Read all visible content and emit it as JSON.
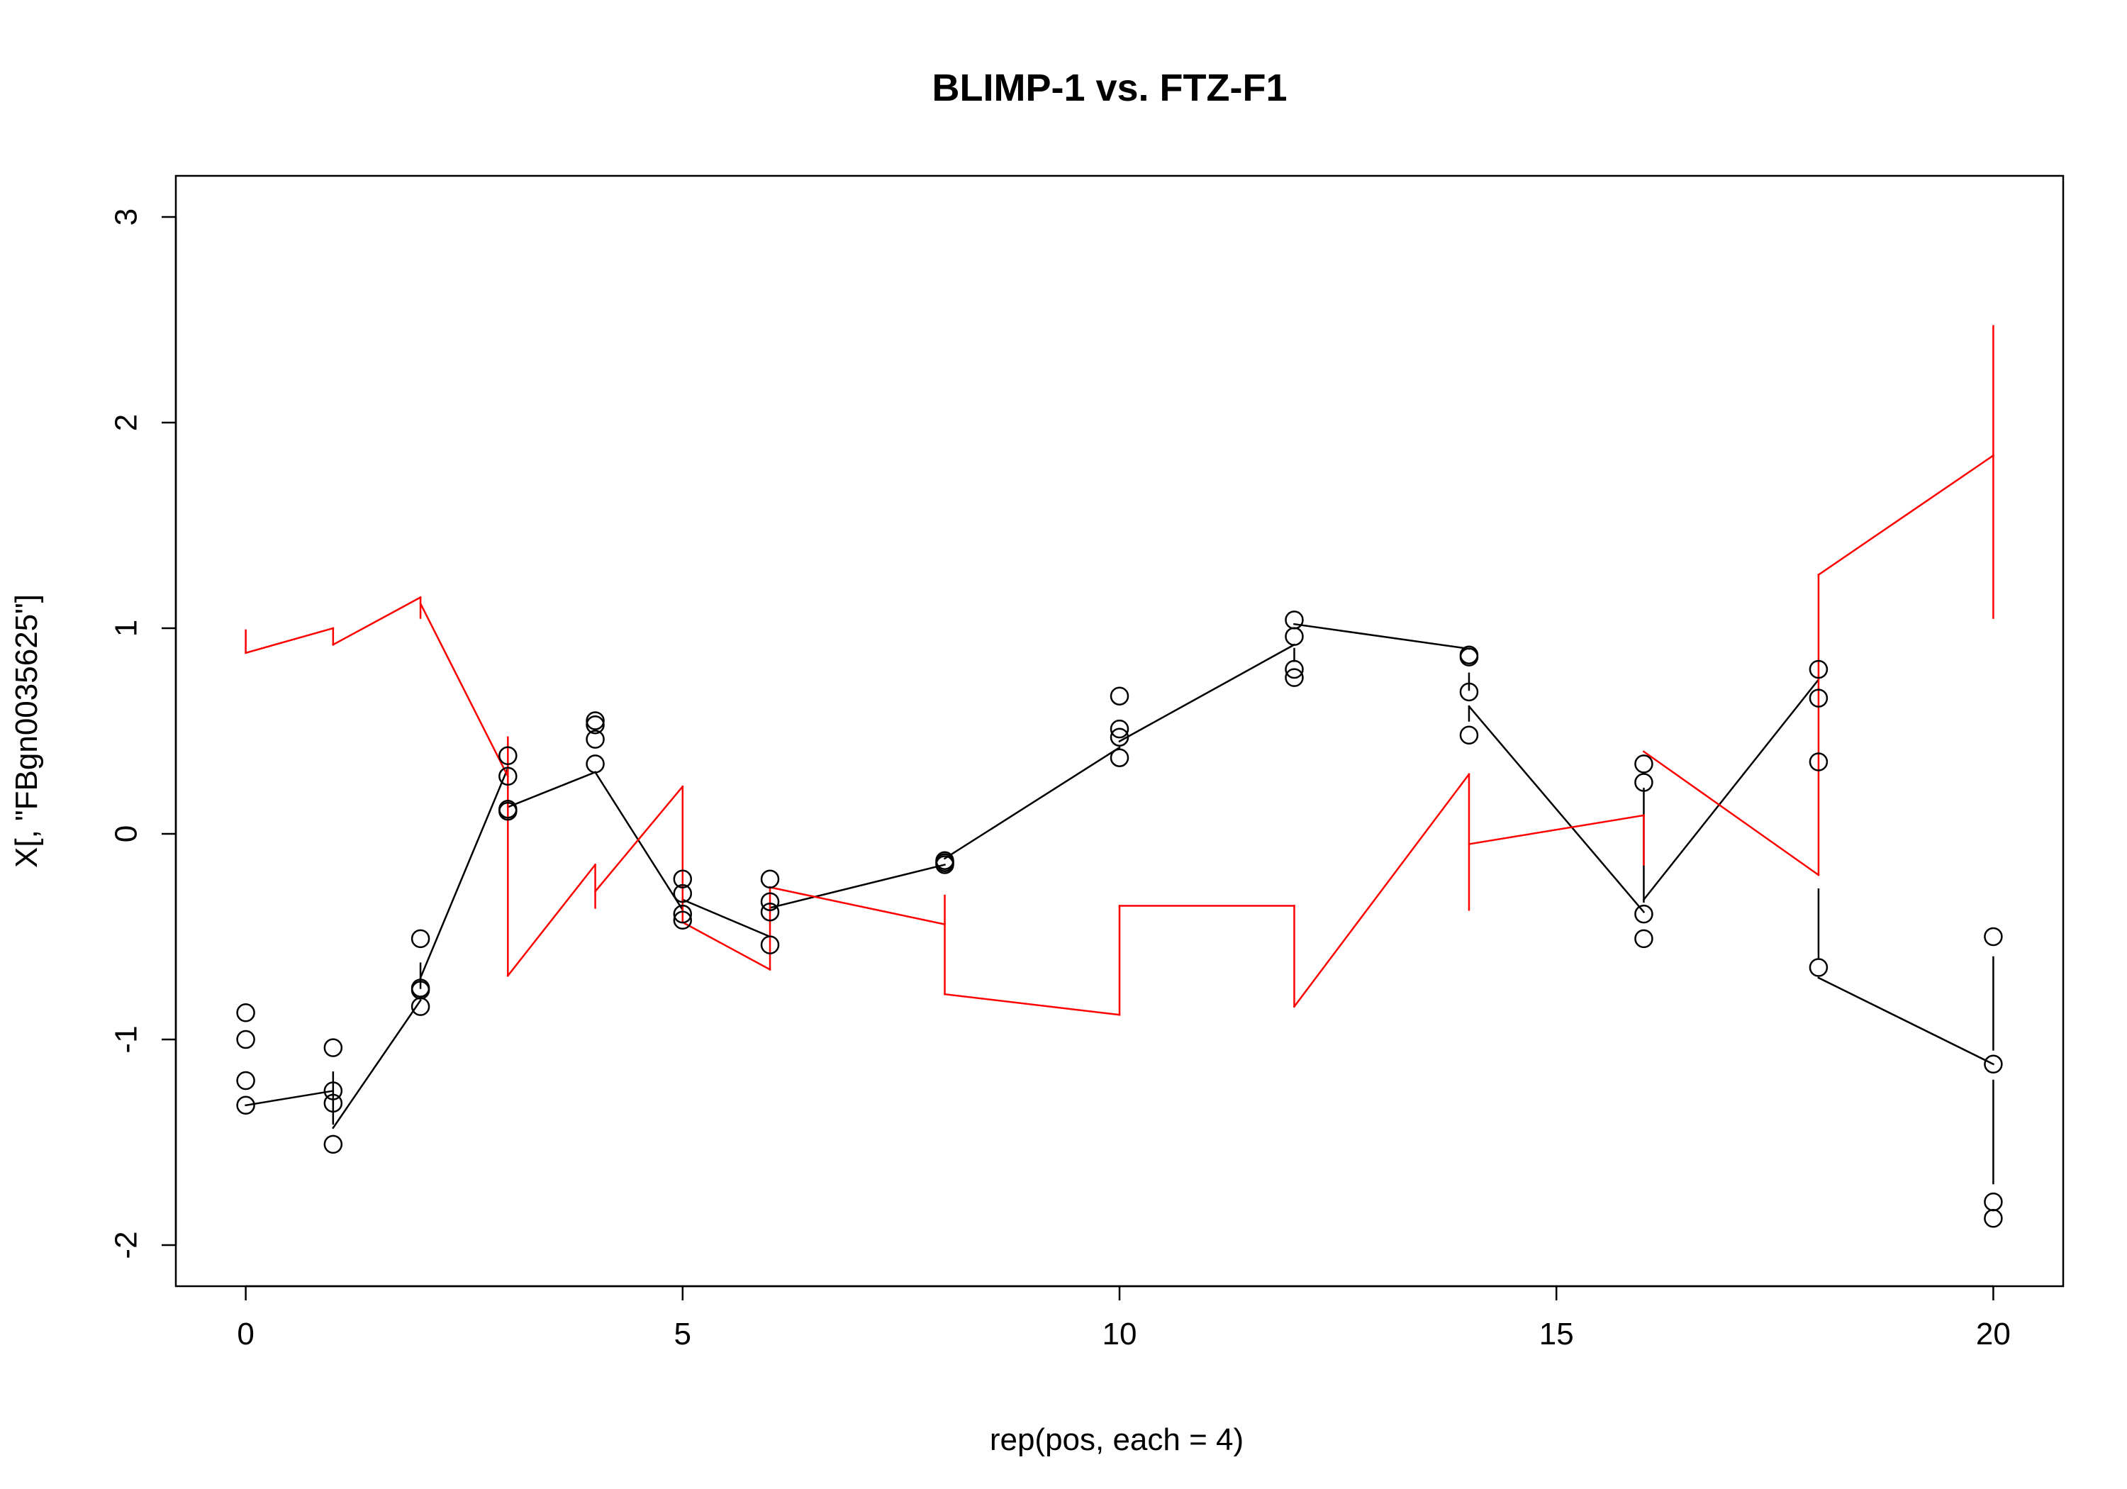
{
  "chart_data": {
    "type": "scatter",
    "title": "BLIMP-1 vs. FTZ-F1",
    "xlabel": "rep(pos, each = 4)",
    "ylabel": "X[, \"FBgn0035625\"]",
    "xlim": [
      -0.8,
      20.8
    ],
    "ylim": [
      -2.2,
      3.2
    ],
    "xticks": [
      0,
      5,
      10,
      15,
      20
    ],
    "yticks": [
      -2,
      -1,
      0,
      1,
      2,
      3
    ],
    "grid": false,
    "colors": {
      "points": "#000000",
      "mean_line": "#000000",
      "ref_line": "#ff0000"
    },
    "points": [
      {
        "x": 0,
        "ys": [
          -0.87,
          -1.0,
          -1.2,
          -1.32
        ]
      },
      {
        "x": 1,
        "ys": [
          -1.04,
          -1.25,
          -1.31,
          -1.51
        ]
      },
      {
        "x": 2,
        "ys": [
          -0.51,
          -0.75,
          -0.76,
          -0.84
        ]
      },
      {
        "x": 3,
        "ys": [
          0.38,
          0.28,
          0.12,
          0.11
        ]
      },
      {
        "x": 4,
        "ys": [
          0.55,
          0.53,
          0.46,
          0.34
        ]
      },
      {
        "x": 5,
        "ys": [
          -0.22,
          -0.29,
          -0.39,
          -0.42
        ]
      },
      {
        "x": 6,
        "ys": [
          -0.22,
          -0.33,
          -0.38,
          -0.54
        ]
      },
      {
        "x": 8,
        "ys": [
          -0.13,
          -0.14,
          -0.14,
          -0.15
        ]
      },
      {
        "x": 10,
        "ys": [
          0.67,
          0.51,
          0.47,
          0.37
        ]
      },
      {
        "x": 12,
        "ys": [
          1.04,
          0.96,
          0.8,
          0.76
        ]
      },
      {
        "x": 14,
        "ys": [
          0.87,
          0.86,
          0.69,
          0.48
        ]
      },
      {
        "x": 16,
        "ys": [
          0.34,
          0.25,
          -0.39,
          -0.51
        ]
      },
      {
        "x": 18,
        "ys": [
          0.8,
          0.66,
          0.35,
          -0.65
        ]
      },
      {
        "x": 20,
        "ys": [
          -0.5,
          -1.12,
          -1.79,
          -1.87
        ]
      }
    ],
    "series": [
      {
        "color": "#000000",
        "segments": [
          [
            [
              0,
              -1.32
            ],
            [
              1,
              -1.25
            ]
          ],
          [
            [
              1,
              -1.16
            ],
            [
              1,
              -1.41
            ]
          ],
          [
            [
              1,
              -1.43
            ],
            [
              2,
              -0.81
            ]
          ],
          [
            [
              2,
              -0.75
            ],
            [
              2,
              -0.63
            ]
          ],
          [
            [
              2,
              -0.7
            ],
            [
              3,
              0.32
            ]
          ],
          [
            [
              3,
              0.13
            ],
            [
              4,
              0.3
            ]
          ],
          [
            [
              4,
              0.3
            ],
            [
              5,
              -0.37
            ]
          ],
          [
            [
              5,
              -0.32
            ],
            [
              6,
              -0.5
            ]
          ],
          [
            [
              6,
              -0.36
            ],
            [
              8,
              -0.15
            ]
          ],
          [
            [
              8,
              -0.12
            ],
            [
              10,
              0.42
            ]
          ],
          [
            [
              10,
              0.45
            ],
            [
              12,
              0.92
            ]
          ],
          [
            [
              12,
              0.9
            ],
            [
              12,
              0.84
            ]
          ],
          [
            [
              12,
              1.02
            ],
            [
              14,
              0.9
            ]
          ],
          [
            [
              14,
              0.62
            ],
            [
              14,
              0.55
            ]
          ],
          [
            [
              14,
              0.78
            ],
            [
              14,
              0.7
            ]
          ],
          [
            [
              14,
              0.62
            ],
            [
              16,
              -0.38
            ]
          ],
          [
            [
              16,
              0.22
            ],
            [
              16,
              -0.33
            ]
          ],
          [
            [
              16,
              -0.32
            ],
            [
              18,
              0.75
            ]
          ],
          [
            [
              18,
              -0.27
            ],
            [
              18,
              -0.6
            ]
          ],
          [
            [
              18,
              -0.7
            ],
            [
              20,
              -1.12
            ]
          ],
          [
            [
              20,
              -0.6
            ],
            [
              20,
              -1.05
            ]
          ],
          [
            [
              20,
              -1.2
            ],
            [
              20,
              -1.7
            ]
          ]
        ]
      },
      {
        "color": "#ff0000",
        "segments": [
          [
            [
              0,
              0.99
            ],
            [
              0,
              0.88
            ]
          ],
          [
            [
              0,
              0.88
            ],
            [
              1,
              1.0
            ]
          ],
          [
            [
              1,
              1.0
            ],
            [
              1,
              0.92
            ]
          ],
          [
            [
              1,
              0.92
            ],
            [
              2,
              1.15
            ]
          ],
          [
            [
              2,
              1.15
            ],
            [
              2,
              1.05
            ]
          ],
          [
            [
              2,
              1.12
            ],
            [
              3,
              0.28
            ]
          ],
          [
            [
              3,
              0.47
            ],
            [
              3,
              -0.69
            ]
          ],
          [
            [
              3,
              -0.69
            ],
            [
              4,
              -0.15
            ]
          ],
          [
            [
              4,
              -0.15
            ],
            [
              4,
              -0.36
            ]
          ],
          [
            [
              4,
              -0.28
            ],
            [
              5,
              0.23
            ]
          ],
          [
            [
              5,
              0.23
            ],
            [
              5,
              -0.43
            ]
          ],
          [
            [
              5,
              -0.43
            ],
            [
              6,
              -0.66
            ]
          ],
          [
            [
              6,
              -0.66
            ],
            [
              6,
              -0.26
            ]
          ],
          [
            [
              6,
              -0.26
            ],
            [
              8,
              -0.44
            ]
          ],
          [
            [
              8,
              -0.3
            ],
            [
              8,
              -0.78
            ]
          ],
          [
            [
              8,
              -0.78
            ],
            [
              10,
              -0.88
            ]
          ],
          [
            [
              10,
              -0.88
            ],
            [
              10,
              -0.35
            ]
          ],
          [
            [
              10,
              -0.35
            ],
            [
              12,
              -0.35
            ]
          ],
          [
            [
              12,
              -0.35
            ],
            [
              12,
              -0.84
            ]
          ],
          [
            [
              12,
              -0.84
            ],
            [
              14,
              0.29
            ]
          ],
          [
            [
              14,
              0.29
            ],
            [
              14,
              -0.37
            ]
          ],
          [
            [
              14,
              -0.05
            ],
            [
              16,
              0.09
            ]
          ],
          [
            [
              16,
              0.09
            ],
            [
              16,
              -0.15
            ]
          ],
          [
            [
              16,
              0.4
            ],
            [
              18,
              -0.2
            ]
          ],
          [
            [
              18,
              -0.2
            ],
            [
              18,
              1.26
            ]
          ],
          [
            [
              18,
              1.26
            ],
            [
              20,
              1.84
            ]
          ],
          [
            [
              20,
              2.47
            ],
            [
              20,
              1.05
            ]
          ]
        ]
      }
    ]
  }
}
